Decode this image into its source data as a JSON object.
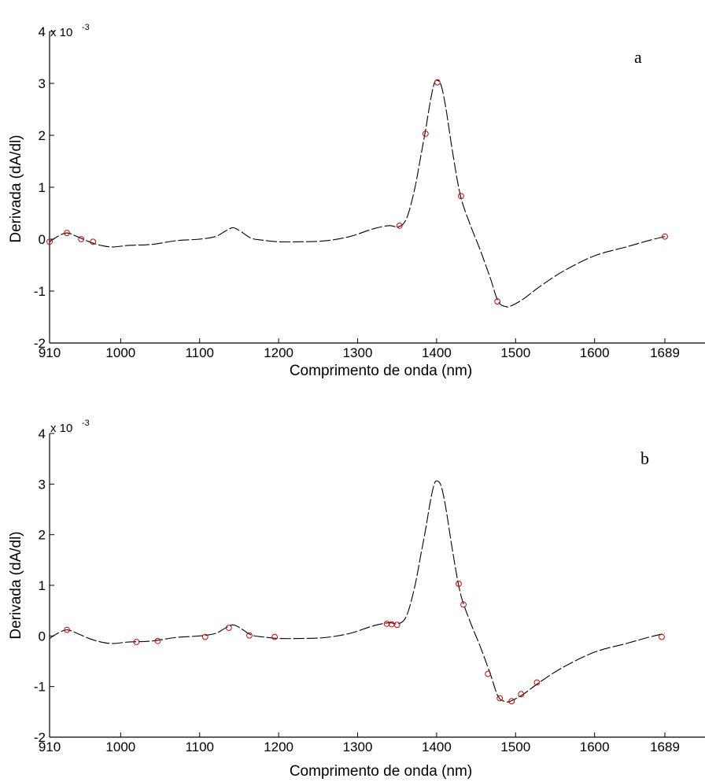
{
  "chart_data": [
    {
      "type": "line",
      "panel_label": "a",
      "xlabel": "Comprimento de onda (nm)",
      "ylabel": "Derivada (dA/dl)",
      "y_multiplier": "x 10",
      "y_multiplier_exp": "-3",
      "xlim": [
        910,
        1689
      ],
      "ylim": [
        -2,
        4
      ],
      "xticks": [
        910,
        1000,
        1100,
        1200,
        1300,
        1400,
        1500,
        1600,
        1689
      ],
      "yticks": [
        -2,
        -1,
        0,
        1,
        2,
        3,
        4
      ],
      "grid": false,
      "colors": {
        "curve": "#000000",
        "marker": "#cc0000"
      },
      "series": [
        {
          "x": [
            910,
            920,
            932,
            945,
            960,
            975,
            990,
            1010,
            1040,
            1070,
            1100,
            1120,
            1132,
            1142,
            1152,
            1165,
            1180,
            1200,
            1230,
            1260,
            1290,
            1320,
            1340,
            1352,
            1362,
            1372,
            1380,
            1386,
            1392,
            1397,
            1401,
            1406,
            1412,
            1420,
            1430,
            1442,
            1455,
            1468,
            1478,
            1488,
            1495,
            1510,
            1530,
            1560,
            1600,
            1640,
            1670,
            1689
          ],
          "y": [
            -0.05,
            0.05,
            0.12,
            0.05,
            -0.05,
            -0.12,
            -0.15,
            -0.12,
            -0.1,
            -0.03,
            0.0,
            0.05,
            0.15,
            0.22,
            0.15,
            0.02,
            -0.02,
            -0.05,
            -0.05,
            -0.03,
            0.05,
            0.2,
            0.26,
            0.24,
            0.4,
            0.95,
            1.6,
            2.1,
            2.65,
            3.0,
            3.06,
            2.95,
            2.5,
            1.7,
            0.85,
            0.3,
            -0.2,
            -0.75,
            -1.2,
            -1.3,
            -1.28,
            -1.15,
            -0.92,
            -0.62,
            -0.32,
            -0.15,
            -0.02,
            0.05
          ]
        }
      ],
      "selected_points": {
        "x": [
          910,
          932,
          950,
          965,
          1353,
          1386,
          1401,
          1431,
          1477,
          1689
        ],
        "y": [
          -0.05,
          0.12,
          0.0,
          -0.05,
          0.26,
          2.03,
          3.02,
          0.83,
          -1.2,
          0.05
        ]
      }
    },
    {
      "type": "line",
      "panel_label": "b",
      "xlabel": "Comprimento de onda (nm)",
      "ylabel": "Derivada (dA/dl)",
      "y_multiplier": "x 10",
      "y_multiplier_exp": "-3",
      "xlim": [
        910,
        1689
      ],
      "ylim": [
        -2,
        4
      ],
      "xticks": [
        910,
        1000,
        1100,
        1200,
        1300,
        1400,
        1500,
        1600,
        1689
      ],
      "yticks": [
        -2,
        -1,
        0,
        1,
        2,
        3,
        4
      ],
      "grid": false,
      "colors": {
        "curve": "#000000",
        "marker": "#cc0000"
      },
      "series": [
        {
          "x": [
            910,
            920,
            932,
            945,
            960,
            975,
            990,
            1010,
            1040,
            1070,
            1100,
            1120,
            1132,
            1142,
            1152,
            1165,
            1180,
            1200,
            1230,
            1260,
            1290,
            1320,
            1340,
            1352,
            1362,
            1372,
            1380,
            1386,
            1392,
            1397,
            1401,
            1406,
            1412,
            1420,
            1430,
            1442,
            1455,
            1468,
            1478,
            1488,
            1495,
            1510,
            1530,
            1560,
            1600,
            1640,
            1670,
            1689
          ],
          "y": [
            -0.05,
            0.05,
            0.12,
            0.05,
            -0.05,
            -0.12,
            -0.15,
            -0.12,
            -0.1,
            -0.03,
            0.0,
            0.05,
            0.15,
            0.22,
            0.15,
            0.02,
            -0.02,
            -0.05,
            -0.05,
            -0.03,
            0.05,
            0.2,
            0.26,
            0.24,
            0.4,
            0.95,
            1.6,
            2.1,
            2.65,
            3.0,
            3.06,
            2.95,
            2.5,
            1.7,
            0.85,
            0.3,
            -0.2,
            -0.75,
            -1.2,
            -1.3,
            -1.28,
            -1.15,
            -0.92,
            -0.62,
            -0.32,
            -0.15,
            -0.02,
            0.05
          ]
        }
      ],
      "selected_points": {
        "x": [
          932,
          1020,
          1047,
          1107,
          1137,
          1163,
          1195,
          1337,
          1343,
          1350,
          1428,
          1434,
          1465,
          1480,
          1495,
          1507,
          1527,
          1685
        ],
        "y": [
          0.12,
          -0.12,
          -0.1,
          -0.02,
          0.16,
          0.01,
          -0.02,
          0.24,
          0.23,
          0.22,
          1.03,
          0.62,
          -0.75,
          -1.23,
          -1.29,
          -1.15,
          -0.92,
          -0.02
        ]
      }
    }
  ]
}
